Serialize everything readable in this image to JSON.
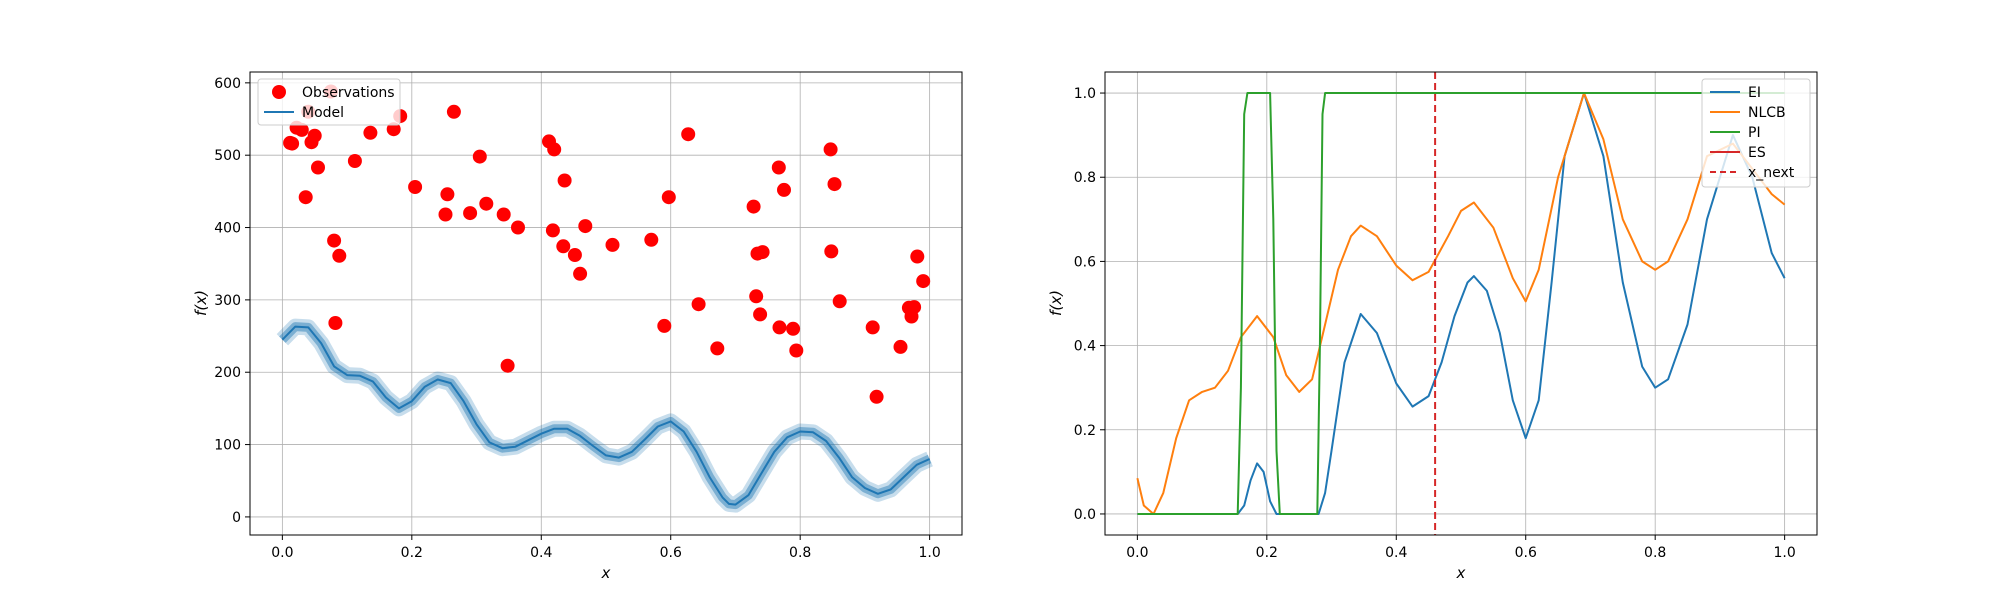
{
  "chart_data": [
    {
      "type": "scatter",
      "xlabel": "x",
      "ylabel": "f(x)",
      "xlim": [
        -0.05,
        1.05
      ],
      "ylim": [
        -25,
        615
      ],
      "xticks": [
        0.0,
        0.2,
        0.4,
        0.6,
        0.8,
        1.0
      ],
      "xtick_labels": [
        "0.0",
        "0.2",
        "0.4",
        "0.6",
        "0.8",
        "1.0"
      ],
      "yticks": [
        0,
        100,
        200,
        300,
        400,
        500,
        600
      ],
      "ytick_labels": [
        "0",
        "100",
        "200",
        "300",
        "400",
        "500",
        "600"
      ],
      "grid": true,
      "legend": {
        "placement": "upper-left",
        "entries": [
          "Observations",
          "Model"
        ]
      },
      "series": [
        {
          "name": "Observations",
          "kind": "scatter",
          "color": "#ff0000",
          "points": [
            [
              0.012,
              517
            ],
            [
              0.015,
              516
            ],
            [
              0.022,
              538
            ],
            [
              0.03,
              535
            ],
            [
              0.036,
              442
            ],
            [
              0.04,
              560
            ],
            [
              0.045,
              518
            ],
            [
              0.05,
              527
            ],
            [
              0.055,
              483
            ],
            [
              0.075,
              588
            ],
            [
              0.08,
              382
            ],
            [
              0.082,
              268
            ],
            [
              0.088,
              361
            ],
            [
              0.112,
              492
            ],
            [
              0.136,
              531
            ],
            [
              0.172,
              536
            ],
            [
              0.182,
              554
            ],
            [
              0.205,
              456
            ],
            [
              0.252,
              418
            ],
            [
              0.255,
              446
            ],
            [
              0.265,
              560
            ],
            [
              0.29,
              420
            ],
            [
              0.305,
              498
            ],
            [
              0.315,
              433
            ],
            [
              0.342,
              418
            ],
            [
              0.348,
              209
            ],
            [
              0.364,
              400
            ],
            [
              0.412,
              519
            ],
            [
              0.418,
              396
            ],
            [
              0.42,
              508
            ],
            [
              0.434,
              374
            ],
            [
              0.436,
              465
            ],
            [
              0.452,
              362
            ],
            [
              0.46,
              336
            ],
            [
              0.468,
              402
            ],
            [
              0.51,
              376
            ],
            [
              0.57,
              383
            ],
            [
              0.59,
              264
            ],
            [
              0.597,
              442
            ],
            [
              0.627,
              529
            ],
            [
              0.643,
              294
            ],
            [
              0.672,
              233
            ],
            [
              0.728,
              429
            ],
            [
              0.732,
              305
            ],
            [
              0.734,
              364
            ],
            [
              0.738,
              280
            ],
            [
              0.742,
              366
            ],
            [
              0.767,
              483
            ],
            [
              0.768,
              262
            ],
            [
              0.775,
              452
            ],
            [
              0.789,
              260
            ],
            [
              0.794,
              230
            ],
            [
              0.847,
              508
            ],
            [
              0.848,
              367
            ],
            [
              0.853,
              460
            ],
            [
              0.861,
              298
            ],
            [
              0.912,
              262
            ],
            [
              0.918,
              166
            ],
            [
              0.955,
              235
            ],
            [
              0.968,
              289
            ],
            [
              0.972,
              277
            ],
            [
              0.976,
              290
            ],
            [
              0.981,
              360
            ],
            [
              0.99,
              326
            ]
          ]
        },
        {
          "name": "Model",
          "kind": "line",
          "color": "#1f77b4",
          "points": [
            [
              0.0,
              245
            ],
            [
              0.02,
              263
            ],
            [
              0.04,
              262
            ],
            [
              0.06,
              240
            ],
            [
              0.08,
              208
            ],
            [
              0.1,
              196
            ],
            [
              0.12,
              195
            ],
            [
              0.14,
              187
            ],
            [
              0.16,
              165
            ],
            [
              0.18,
              150
            ],
            [
              0.2,
              160
            ],
            [
              0.22,
              180
            ],
            [
              0.24,
              190
            ],
            [
              0.26,
              185
            ],
            [
              0.28,
              160
            ],
            [
              0.3,
              128
            ],
            [
              0.32,
              103
            ],
            [
              0.34,
              95
            ],
            [
              0.36,
              97
            ],
            [
              0.38,
              106
            ],
            [
              0.4,
              115
            ],
            [
              0.42,
              122
            ],
            [
              0.44,
              122
            ],
            [
              0.46,
              112
            ],
            [
              0.48,
              98
            ],
            [
              0.5,
              85
            ],
            [
              0.52,
              82
            ],
            [
              0.54,
              90
            ],
            [
              0.56,
              107
            ],
            [
              0.58,
              125
            ],
            [
              0.6,
              132
            ],
            [
              0.62,
              118
            ],
            [
              0.64,
              90
            ],
            [
              0.66,
              55
            ],
            [
              0.68,
              27
            ],
            [
              0.69,
              18
            ],
            [
              0.7,
              17
            ],
            [
              0.72,
              30
            ],
            [
              0.74,
              60
            ],
            [
              0.76,
              90
            ],
            [
              0.78,
              110
            ],
            [
              0.8,
              118
            ],
            [
              0.82,
              117
            ],
            [
              0.84,
              105
            ],
            [
              0.86,
              82
            ],
            [
              0.88,
              55
            ],
            [
              0.9,
              40
            ],
            [
              0.92,
              32
            ],
            [
              0.94,
              38
            ],
            [
              0.96,
              55
            ],
            [
              0.98,
              72
            ],
            [
              1.0,
              80
            ]
          ]
        }
      ]
    },
    {
      "type": "line",
      "xlabel": "x",
      "ylabel": "f(x)",
      "xlim": [
        -0.05,
        1.05
      ],
      "ylim": [
        -0.05,
        1.05
      ],
      "xticks": [
        0.0,
        0.2,
        0.4,
        0.6,
        0.8,
        1.0
      ],
      "xtick_labels": [
        "0.0",
        "0.2",
        "0.4",
        "0.6",
        "0.8",
        "1.0"
      ],
      "yticks": [
        0.0,
        0.2,
        0.4,
        0.6,
        0.8,
        1.0
      ],
      "ytick_labels": [
        "0.0",
        "0.2",
        "0.4",
        "0.6",
        "0.8",
        "1.0"
      ],
      "grid": true,
      "legend": {
        "placement": "upper-right",
        "entries": [
          "EI",
          "NLCB",
          "PI",
          "ES",
          "x_next"
        ]
      },
      "series": [
        {
          "name": "EI",
          "color": "#1f77b4",
          "points": [
            [
              0.0,
              0
            ],
            [
              0.155,
              0
            ],
            [
              0.165,
              0.02
            ],
            [
              0.175,
              0.08
            ],
            [
              0.185,
              0.12
            ],
            [
              0.195,
              0.1
            ],
            [
              0.205,
              0.03
            ],
            [
              0.215,
              0
            ],
            [
              0.28,
              0
            ],
            [
              0.29,
              0.05
            ],
            [
              0.3,
              0.15
            ],
            [
              0.32,
              0.36
            ],
            [
              0.345,
              0.475
            ],
            [
              0.37,
              0.43
            ],
            [
              0.4,
              0.31
            ],
            [
              0.425,
              0.255
            ],
            [
              0.45,
              0.28
            ],
            [
              0.47,
              0.36
            ],
            [
              0.49,
              0.47
            ],
            [
              0.51,
              0.55
            ],
            [
              0.52,
              0.565
            ],
            [
              0.54,
              0.53
            ],
            [
              0.56,
              0.43
            ],
            [
              0.58,
              0.27
            ],
            [
              0.6,
              0.18
            ],
            [
              0.62,
              0.27
            ],
            [
              0.64,
              0.55
            ],
            [
              0.66,
              0.85
            ],
            [
              0.69,
              1.0
            ],
            [
              0.72,
              0.85
            ],
            [
              0.75,
              0.55
            ],
            [
              0.78,
              0.35
            ],
            [
              0.8,
              0.3
            ],
            [
              0.82,
              0.32
            ],
            [
              0.85,
              0.45
            ],
            [
              0.88,
              0.7
            ],
            [
              0.92,
              0.9
            ],
            [
              0.95,
              0.8
            ],
            [
              0.98,
              0.62
            ],
            [
              1.0,
              0.56
            ]
          ]
        },
        {
          "name": "NLCB",
          "color": "#ff7f0e",
          "points": [
            [
              0.0,
              0.085
            ],
            [
              0.01,
              0.02
            ],
            [
              0.025,
              0.0
            ],
            [
              0.04,
              0.05
            ],
            [
              0.06,
              0.18
            ],
            [
              0.08,
              0.27
            ],
            [
              0.1,
              0.29
            ],
            [
              0.12,
              0.3
            ],
            [
              0.14,
              0.34
            ],
            [
              0.16,
              0.42
            ],
            [
              0.185,
              0.47
            ],
            [
              0.21,
              0.42
            ],
            [
              0.23,
              0.33
            ],
            [
              0.25,
              0.29
            ],
            [
              0.27,
              0.32
            ],
            [
              0.29,
              0.45
            ],
            [
              0.31,
              0.58
            ],
            [
              0.33,
              0.66
            ],
            [
              0.345,
              0.685
            ],
            [
              0.37,
              0.66
            ],
            [
              0.4,
              0.59
            ],
            [
              0.425,
              0.555
            ],
            [
              0.45,
              0.575
            ],
            [
              0.48,
              0.66
            ],
            [
              0.5,
              0.72
            ],
            [
              0.52,
              0.74
            ],
            [
              0.55,
              0.68
            ],
            [
              0.58,
              0.56
            ],
            [
              0.6,
              0.505
            ],
            [
              0.62,
              0.58
            ],
            [
              0.65,
              0.8
            ],
            [
              0.69,
              1.0
            ],
            [
              0.72,
              0.89
            ],
            [
              0.75,
              0.7
            ],
            [
              0.78,
              0.6
            ],
            [
              0.8,
              0.58
            ],
            [
              0.82,
              0.6
            ],
            [
              0.85,
              0.7
            ],
            [
              0.88,
              0.85
            ],
            [
              0.92,
              0.88
            ],
            [
              0.95,
              0.82
            ],
            [
              0.98,
              0.76
            ],
            [
              1.0,
              0.735
            ]
          ]
        },
        {
          "name": "PI",
          "color": "#2ca02c",
          "points": [
            [
              0.0,
              0
            ],
            [
              0.155,
              0
            ],
            [
              0.16,
              0.3
            ],
            [
              0.165,
              0.95
            ],
            [
              0.17,
              1.0
            ],
            [
              0.205,
              1.0
            ],
            [
              0.21,
              0.7
            ],
            [
              0.215,
              0.15
            ],
            [
              0.22,
              0
            ],
            [
              0.278,
              0
            ],
            [
              0.282,
              0.4
            ],
            [
              0.286,
              0.95
            ],
            [
              0.29,
              1.0
            ],
            [
              1.0,
              1.0
            ]
          ]
        },
        {
          "name": "ES",
          "color": "#d62728",
          "points": []
        },
        {
          "name": "x_next",
          "color": "#d62728",
          "dashed": true,
          "vertical_x": 0.46
        }
      ]
    }
  ]
}
